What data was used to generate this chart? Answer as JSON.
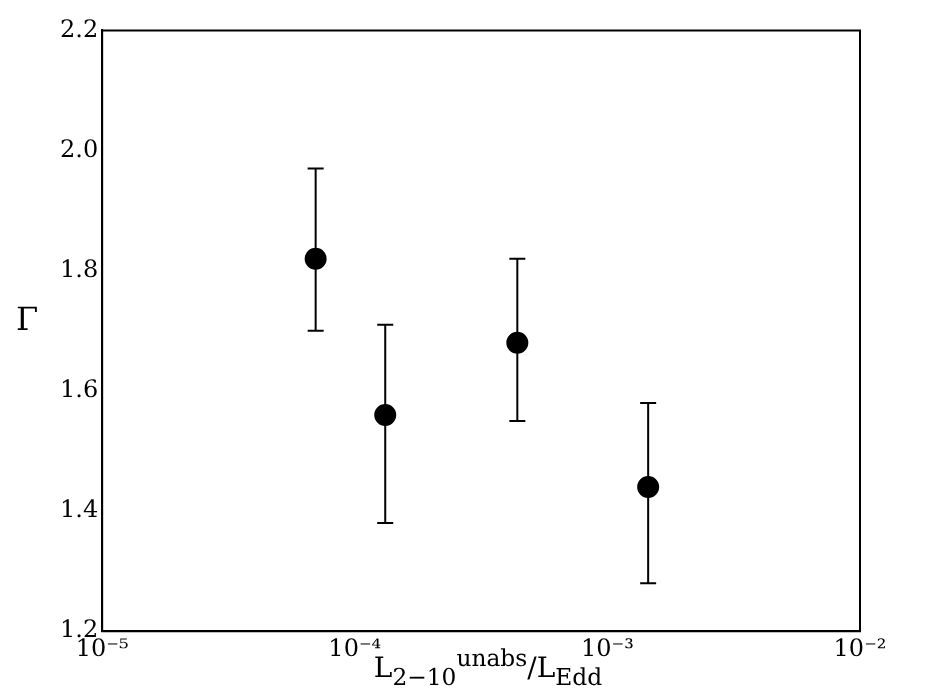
{
  "chart_data": {
    "type": "scatter",
    "xlabel": "L$_{2−10}$$^{unabs}$/L$_{Edd}$",
    "ylabel": "Γ",
    "log": "x",
    "xlim": [
      1e-05,
      0.01
    ],
    "xticks": [
      {
        "value": 1e-05,
        "label": "10⁻⁵"
      },
      {
        "value": 0.0001,
        "label": "10⁻⁴"
      },
      {
        "value": 0.001,
        "label": "10⁻³"
      },
      {
        "value": 0.01,
        "label": "10⁻²"
      }
    ],
    "ylim": [
      1.2,
      2.2
    ],
    "yticks": [
      {
        "value": 1.2,
        "label": "1.2"
      },
      {
        "value": 1.4,
        "label": "1.4"
      },
      {
        "value": 1.6,
        "label": "1.6"
      },
      {
        "value": 1.8,
        "label": "1.8"
      },
      {
        "value": 2.0,
        "label": "2.0"
      },
      {
        "value": 2.2,
        "label": "2.2"
      }
    ],
    "grid": false,
    "legend": false,
    "marker": "circle",
    "series": [
      {
        "color": "#000000",
        "x": [
          7e-05,
          0.000132,
          0.00044,
          0.00145
        ],
        "values": [
          1.82,
          1.56,
          1.68,
          1.44
        ],
        "errors": [
          [
            1.7,
            1.97
          ],
          [
            1.38,
            1.71
          ],
          [
            1.55,
            1.82
          ],
          [
            1.28,
            1.58
          ]
        ]
      }
    ]
  }
}
